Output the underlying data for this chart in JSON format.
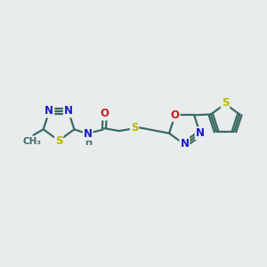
{
  "background_color": "#e8ecec",
  "bond_color": "#3a6b60",
  "bond_width": 1.6,
  "atom_colors": {
    "N": "#1a1acc",
    "O": "#cc1a1a",
    "S": "#b8b800",
    "C": "#3a6b60",
    "H": "#3a6b60"
  },
  "font_size": 8.5,
  "fig_width": 3.0,
  "fig_height": 3.0
}
